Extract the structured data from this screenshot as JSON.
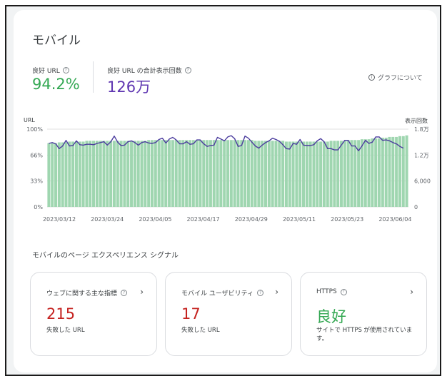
{
  "page": {
    "title": "モバイル"
  },
  "metrics": {
    "good_url": {
      "label": "良好 URL",
      "value": "94.2%"
    },
    "impressions": {
      "label": "良好 URL の合計表示回数",
      "value": "126万"
    }
  },
  "about_graph": {
    "label": "グラフについて"
  },
  "colors": {
    "good": "#34a853",
    "bar": "#9fd6b0",
    "line": "#4b3c9e",
    "fail": "#c5221f",
    "accent": "#5e35b1"
  },
  "chart_data": {
    "type": "bar+line",
    "left_axis": {
      "title": "URL",
      "ticks": [
        "100%",
        "66%",
        "33%",
        "0%"
      ],
      "range": [
        0,
        100
      ],
      "unit": "%"
    },
    "right_axis": {
      "title": "表示回数",
      "ticks": [
        "1.8万",
        "1.2万",
        "6,000",
        "0"
      ],
      "range": [
        0,
        18000
      ]
    },
    "x_ticks": [
      "2023/03/12",
      "2023/03/24",
      "2023/04/05",
      "2023/04/17",
      "2023/04/29",
      "2023/05/11",
      "2023/05/23",
      "2023/06/04"
    ],
    "series": [
      {
        "kind": "bar",
        "axis": "left",
        "values": [
          82,
          82,
          82,
          83,
          83,
          83,
          84,
          84,
          84,
          84,
          84,
          85,
          85,
          85,
          85,
          85,
          85,
          85,
          85,
          85,
          85,
          85,
          85,
          85,
          85,
          85,
          85,
          85,
          85,
          86,
          86,
          86,
          86,
          86,
          86,
          86,
          86,
          86,
          86,
          86,
          86,
          86,
          86,
          86,
          86,
          86,
          86,
          86,
          86,
          86,
          86,
          86,
          86,
          86,
          86,
          86,
          86,
          86,
          86,
          86,
          85,
          85,
          85,
          85,
          85,
          85,
          85,
          85,
          85,
          84,
          84,
          84,
          84,
          84,
          84,
          84,
          84,
          84,
          84,
          84,
          84,
          84,
          85,
          85,
          85,
          85,
          85,
          86,
          86,
          86,
          86,
          87,
          87,
          87,
          88,
          88,
          88,
          89,
          89,
          90,
          90,
          90,
          91,
          91,
          92
        ]
      },
      {
        "kind": "line",
        "axis": "right",
        "values": [
          14700,
          14900,
          14600,
          13500,
          14100,
          15400,
          14100,
          14200,
          15300,
          14400,
          14300,
          14500,
          14500,
          14400,
          14700,
          14900,
          15100,
          14300,
          15100,
          16400,
          15000,
          14200,
          14300,
          15100,
          15300,
          14900,
          14300,
          14900,
          15100,
          14800,
          14700,
          14900,
          15600,
          15900,
          14800,
          15700,
          16100,
          15500,
          14600,
          14600,
          15100,
          14500,
          14600,
          15500,
          15500,
          14600,
          14000,
          14200,
          14300,
          16100,
          15700,
          15300,
          16200,
          16500,
          15800,
          14000,
          14200,
          16400,
          15900,
          15000,
          14100,
          13600,
          14300,
          14900,
          15300,
          15900,
          15600,
          15200,
          14400,
          13500,
          13400,
          14700,
          14500,
          15600,
          14300,
          14200,
          14200,
          14400,
          15300,
          15800,
          15100,
          13500,
          13500,
          13200,
          13200,
          14300,
          15400,
          15400,
          14100,
          14100,
          13000,
          14100,
          15400,
          14700,
          15000,
          16200,
          16200,
          15400,
          15500,
          15300,
          14900,
          14600,
          14000,
          13600
        ]
      }
    ]
  },
  "section": {
    "title": "モバイルのページ エクスペリエンス シグナル"
  },
  "tiles": [
    {
      "title": "ウェブに関する主な指標",
      "value": "215",
      "sub": "失敗した URL"
    },
    {
      "title": "モバイル ユーザビリティ",
      "value": "17",
      "sub": "失敗した URL"
    },
    {
      "title": "HTTPS",
      "value": "良好",
      "sub": "サイトで HTTPS が使用されています。"
    }
  ]
}
